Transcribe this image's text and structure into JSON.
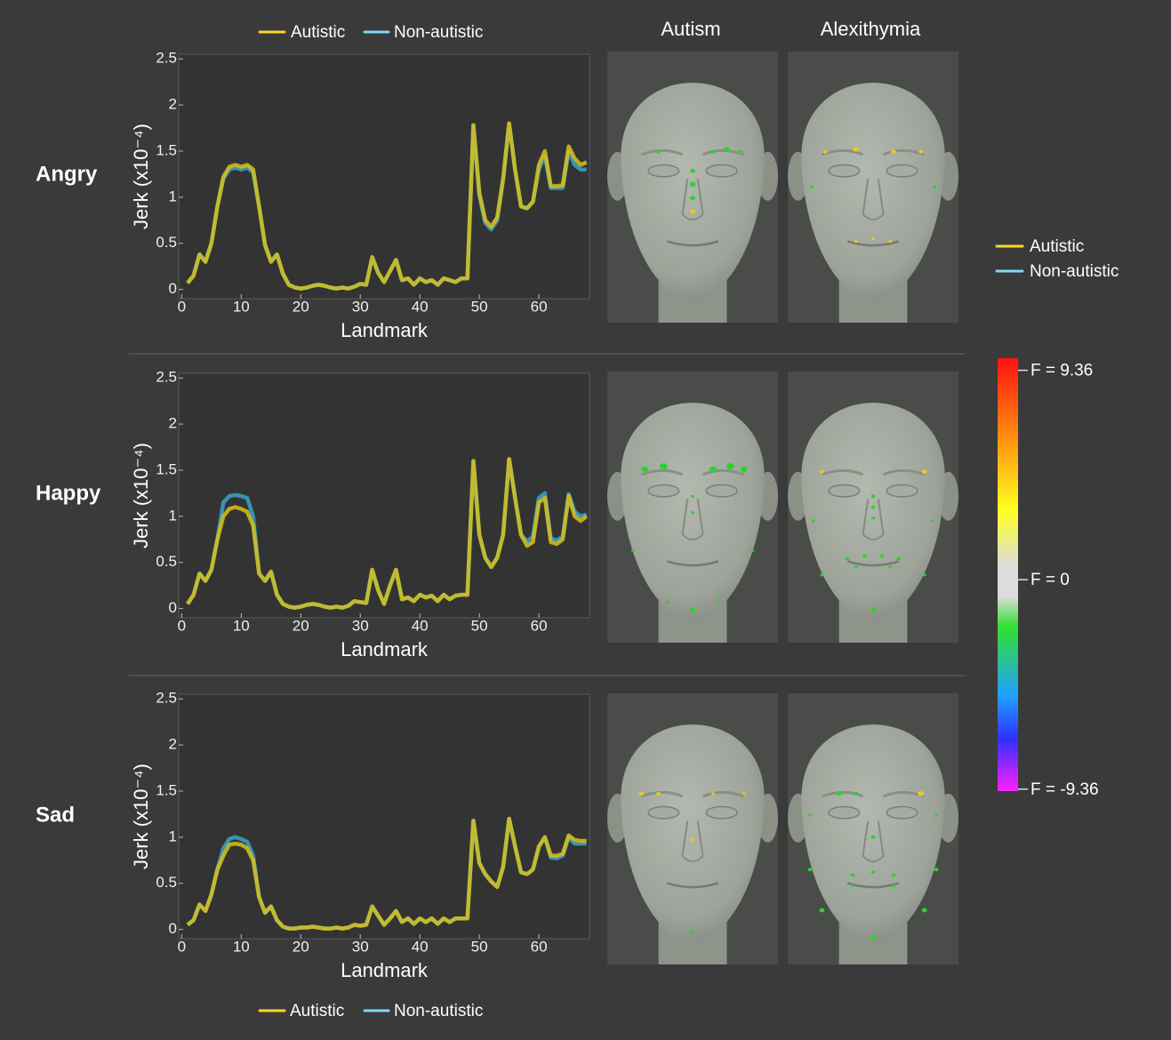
{
  "chart_data": [
    {
      "type": "line",
      "title": "Angry",
      "xlabel": "Landmark",
      "ylabel": "Jerk (x10⁻⁴)",
      "x": [
        1,
        2,
        3,
        4,
        5,
        6,
        7,
        8,
        9,
        10,
        11,
        12,
        13,
        14,
        15,
        16,
        17,
        18,
        19,
        20,
        21,
        22,
        23,
        24,
        25,
        26,
        27,
        28,
        29,
        30,
        31,
        32,
        33,
        34,
        35,
        36,
        37,
        38,
        39,
        40,
        41,
        42,
        43,
        44,
        45,
        46,
        47,
        48,
        49,
        50,
        51,
        52,
        53,
        54,
        55,
        56,
        57,
        58,
        59,
        60,
        61,
        62,
        63,
        64,
        65,
        66,
        67,
        68
      ],
      "series": [
        {
          "name": "Non-autistic",
          "color": "#3ba3c9",
          "values": [
            0.07,
            0.15,
            0.38,
            0.3,
            0.5,
            0.9,
            1.2,
            1.3,
            1.32,
            1.3,
            1.32,
            1.27,
            0.9,
            0.48,
            0.3,
            0.38,
            0.17,
            0.05,
            0.02,
            0.01,
            0.02,
            0.04,
            0.05,
            0.04,
            0.02,
            0.01,
            0.02,
            0.01,
            0.03,
            0.06,
            0.05,
            0.35,
            0.18,
            0.08,
            0.2,
            0.32,
            0.1,
            0.12,
            0.05,
            0.12,
            0.08,
            0.1,
            0.05,
            0.12,
            0.1,
            0.08,
            0.12,
            0.12,
            1.78,
            1.02,
            0.72,
            0.65,
            0.75,
            1.2,
            1.8,
            1.3,
            0.9,
            0.88,
            0.95,
            1.3,
            1.45,
            1.1,
            1.1,
            1.1,
            1.5,
            1.35,
            1.3,
            1.3
          ]
        },
        {
          "name": "Autistic",
          "color": "#d9c21a",
          "values": [
            0.07,
            0.15,
            0.38,
            0.3,
            0.5,
            0.9,
            1.22,
            1.33,
            1.35,
            1.33,
            1.35,
            1.3,
            0.9,
            0.48,
            0.3,
            0.38,
            0.17,
            0.05,
            0.02,
            0.01,
            0.02,
            0.04,
            0.05,
            0.04,
            0.02,
            0.01,
            0.02,
            0.01,
            0.03,
            0.06,
            0.05,
            0.35,
            0.18,
            0.08,
            0.2,
            0.32,
            0.1,
            0.12,
            0.05,
            0.12,
            0.08,
            0.1,
            0.05,
            0.12,
            0.1,
            0.08,
            0.12,
            0.12,
            1.78,
            1.05,
            0.75,
            0.68,
            0.78,
            1.2,
            1.8,
            1.3,
            0.9,
            0.88,
            0.95,
            1.35,
            1.5,
            1.12,
            1.12,
            1.13,
            1.55,
            1.42,
            1.35,
            1.38
          ]
        }
      ],
      "xlim": [
        -0.5,
        68.5
      ],
      "ylim": [
        -0.1,
        2.55
      ],
      "xticks": [
        0,
        10,
        20,
        30,
        40,
        50,
        60
      ],
      "yticks": [
        0,
        0.5,
        1,
        1.5,
        2,
        2.5
      ]
    },
    {
      "type": "line",
      "title": "Happy",
      "xlabel": "Landmark",
      "ylabel": "Jerk (x10⁻⁴)",
      "x": [
        1,
        2,
        3,
        4,
        5,
        6,
        7,
        8,
        9,
        10,
        11,
        12,
        13,
        14,
        15,
        16,
        17,
        18,
        19,
        20,
        21,
        22,
        23,
        24,
        25,
        26,
        27,
        28,
        29,
        30,
        31,
        32,
        33,
        34,
        35,
        36,
        37,
        38,
        39,
        40,
        41,
        42,
        43,
        44,
        45,
        46,
        47,
        48,
        49,
        50,
        51,
        52,
        53,
        54,
        55,
        56,
        57,
        58,
        59,
        60,
        61,
        62,
        63,
        64,
        65,
        66,
        67,
        68
      ],
      "series": [
        {
          "name": "Non-autistic",
          "color": "#3ba3c9",
          "values": [
            0.05,
            0.15,
            0.38,
            0.3,
            0.42,
            0.75,
            1.15,
            1.22,
            1.23,
            1.22,
            1.2,
            1.0,
            0.38,
            0.3,
            0.4,
            0.15,
            0.05,
            0.02,
            0.01,
            0.02,
            0.04,
            0.05,
            0.04,
            0.02,
            0.01,
            0.02,
            0.01,
            0.03,
            0.08,
            0.07,
            0.06,
            0.42,
            0.2,
            0.05,
            0.25,
            0.42,
            0.1,
            0.12,
            0.08,
            0.15,
            0.12,
            0.14,
            0.08,
            0.15,
            0.1,
            0.14,
            0.15,
            0.15,
            1.6,
            0.8,
            0.55,
            0.45,
            0.55,
            0.8,
            1.62,
            1.2,
            0.8,
            0.73,
            0.78,
            1.2,
            1.25,
            0.76,
            0.74,
            0.78,
            1.24,
            1.05,
            1.0,
            1.02
          ]
        },
        {
          "name": "Autistic",
          "color": "#d9c21a",
          "values": [
            0.05,
            0.15,
            0.38,
            0.3,
            0.42,
            0.75,
            1.0,
            1.08,
            1.1,
            1.08,
            1.05,
            0.9,
            0.38,
            0.3,
            0.4,
            0.15,
            0.05,
            0.02,
            0.01,
            0.02,
            0.04,
            0.05,
            0.04,
            0.02,
            0.01,
            0.02,
            0.01,
            0.03,
            0.08,
            0.07,
            0.06,
            0.42,
            0.2,
            0.05,
            0.25,
            0.42,
            0.1,
            0.12,
            0.08,
            0.15,
            0.12,
            0.14,
            0.08,
            0.15,
            0.1,
            0.14,
            0.15,
            0.15,
            1.6,
            0.8,
            0.55,
            0.45,
            0.55,
            0.8,
            1.62,
            1.2,
            0.8,
            0.68,
            0.72,
            1.15,
            1.2,
            0.72,
            0.7,
            0.75,
            1.22,
            1.0,
            0.95,
            1.0
          ]
        }
      ],
      "xlim": [
        -0.5,
        68.5
      ],
      "ylim": [
        -0.1,
        2.55
      ],
      "xticks": [
        0,
        10,
        20,
        30,
        40,
        50,
        60
      ],
      "yticks": [
        0,
        0.5,
        1,
        1.5,
        2,
        2.5
      ]
    },
    {
      "type": "line",
      "title": "Sad",
      "xlabel": "Landmark",
      "ylabel": "Jerk (x10⁻⁴)",
      "x": [
        1,
        2,
        3,
        4,
        5,
        6,
        7,
        8,
        9,
        10,
        11,
        12,
        13,
        14,
        15,
        16,
        17,
        18,
        19,
        20,
        21,
        22,
        23,
        24,
        25,
        26,
        27,
        28,
        29,
        30,
        31,
        32,
        33,
        34,
        35,
        36,
        37,
        38,
        39,
        40,
        41,
        42,
        43,
        44,
        45,
        46,
        47,
        48,
        49,
        50,
        51,
        52,
        53,
        54,
        55,
        56,
        57,
        58,
        59,
        60,
        61,
        62,
        63,
        64,
        65,
        66,
        67,
        68
      ],
      "series": [
        {
          "name": "Non-autistic",
          "color": "#3ba3c9",
          "values": [
            0.05,
            0.1,
            0.27,
            0.2,
            0.38,
            0.65,
            0.88,
            0.98,
            1.0,
            0.98,
            0.95,
            0.8,
            0.35,
            0.18,
            0.25,
            0.1,
            0.03,
            0.01,
            0.01,
            0.02,
            0.02,
            0.03,
            0.02,
            0.01,
            0.01,
            0.02,
            0.01,
            0.02,
            0.05,
            0.04,
            0.05,
            0.25,
            0.15,
            0.05,
            0.12,
            0.2,
            0.08,
            0.12,
            0.06,
            0.12,
            0.08,
            0.12,
            0.06,
            0.12,
            0.08,
            0.12,
            0.12,
            0.12,
            1.18,
            0.72,
            0.6,
            0.52,
            0.46,
            0.68,
            1.2,
            0.9,
            0.62,
            0.6,
            0.65,
            0.9,
            1.0,
            0.78,
            0.77,
            0.8,
            1.0,
            0.93,
            0.93,
            0.93
          ]
        },
        {
          "name": "Autistic",
          "color": "#d9c21a",
          "values": [
            0.05,
            0.1,
            0.27,
            0.2,
            0.38,
            0.65,
            0.8,
            0.92,
            0.93,
            0.92,
            0.88,
            0.75,
            0.35,
            0.18,
            0.25,
            0.1,
            0.03,
            0.01,
            0.01,
            0.02,
            0.02,
            0.03,
            0.02,
            0.01,
            0.01,
            0.02,
            0.01,
            0.02,
            0.05,
            0.04,
            0.05,
            0.25,
            0.15,
            0.05,
            0.12,
            0.2,
            0.08,
            0.12,
            0.06,
            0.12,
            0.08,
            0.12,
            0.06,
            0.12,
            0.08,
            0.12,
            0.12,
            0.12,
            1.18,
            0.72,
            0.6,
            0.52,
            0.46,
            0.68,
            1.2,
            0.9,
            0.62,
            0.6,
            0.65,
            0.9,
            1.0,
            0.8,
            0.8,
            0.82,
            1.02,
            0.97,
            0.96,
            0.96
          ]
        }
      ],
      "xlim": [
        -0.5,
        68.5
      ],
      "ylim": [
        -0.1,
        2.55
      ],
      "xticks": [
        0,
        10,
        20,
        30,
        40,
        50,
        60
      ],
      "yticks": [
        0,
        0.5,
        1,
        1.5,
        2,
        2.5
      ]
    }
  ],
  "face_columns": [
    "Autism",
    "Alexithymia"
  ],
  "colorbar": {
    "lim": [
      -9.45,
      9.9
    ],
    "ticks": [
      {
        "value": 9.36,
        "label": "F = 9.36"
      },
      {
        "value": 0,
        "label": "F = 0"
      },
      {
        "value": -9.36,
        "label": "F = -9.36"
      }
    ]
  }
}
